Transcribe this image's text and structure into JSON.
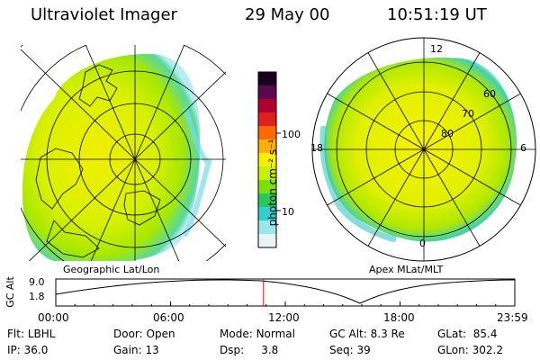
{
  "header": {
    "instrument": "Ultraviolet Imager",
    "date": "29 May 00",
    "time": "10:51:19 UT"
  },
  "left_map": {
    "caption": "Geographic Lat/Lon"
  },
  "right_map": {
    "caption": "Apex MLat/MLT",
    "mlt_labels": {
      "top": "12",
      "left": "18",
      "right": "6",
      "bottom": "0"
    },
    "lat_labels": [
      "60",
      "70",
      "80"
    ]
  },
  "colorbar": {
    "unit": "photon cm⁻² s⁻¹",
    "ticks": [
      "100",
      "10"
    ],
    "colors": [
      "#1a0020",
      "#5a0a4a",
      "#b00030",
      "#e02020",
      "#ff6a00",
      "#ffb000",
      "#f8f000",
      "#c8f000",
      "#7ce000",
      "#28c860",
      "#30d0d0",
      "#9ae6ea",
      "#e8f4f4"
    ]
  },
  "altitude_plot": {
    "ylabel": "GC Alt",
    "yticks": [
      "9.0",
      "1.8"
    ],
    "xticks": [
      "00:00",
      "06:00",
      "12:00",
      "18:00",
      "23:59"
    ],
    "marker_time_hours": 10.86,
    "marker_color": "#ff0000"
  },
  "info": {
    "flt_label": "Flt:",
    "flt_value": "LBHL",
    "ip_label": "IP:",
    "ip_value": "36.0",
    "door_label": "Door:",
    "door_value": "Open",
    "gain_label": "Gain:",
    "gain_value": "13",
    "mode_label": "Mode:",
    "mode_value": "Normal",
    "dsp_label": "Dsp:",
    "dsp_value": "3.8",
    "gcalt_label": "GC Alt:",
    "gcalt_value": "8.3 Re",
    "seq_label": "Seq:",
    "seq_value": "39",
    "glat_label": "GLat:",
    "glat_value": "85.4",
    "glon_label": "GLon:",
    "glon_value": "302.2"
  }
}
